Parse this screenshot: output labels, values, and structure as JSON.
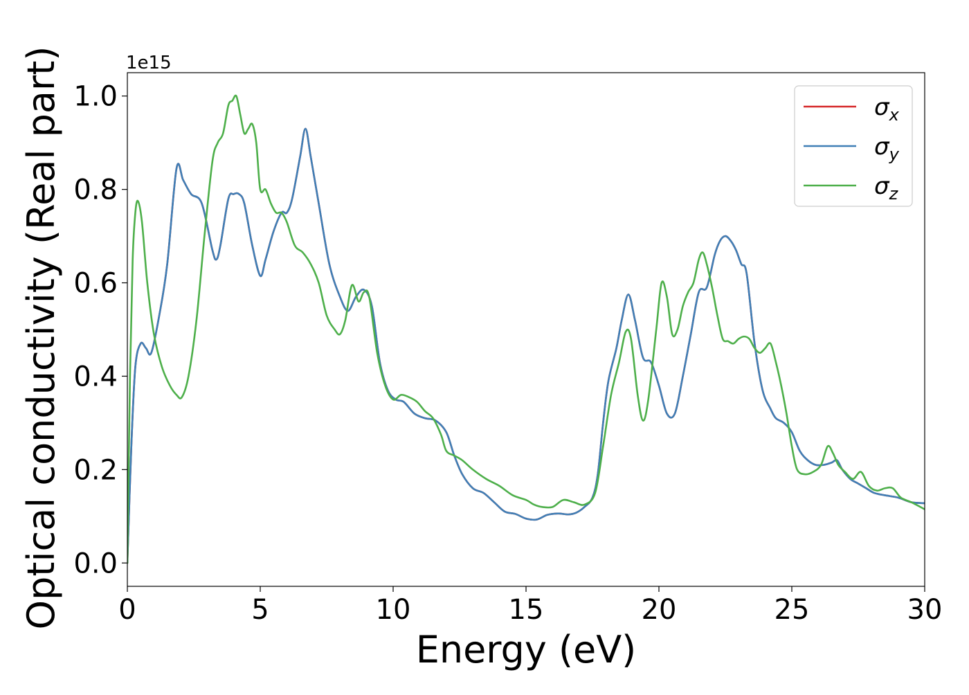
{
  "chart_data": {
    "type": "line",
    "title": "",
    "xlabel": "Energy (eV)",
    "ylabel": "Optical conductivity (Real part)",
    "y_offset_label": "1e15",
    "xlim": [
      0,
      30
    ],
    "ylim": [
      -0.05,
      1.05
    ],
    "x_ticks": [
      0,
      5,
      10,
      15,
      20,
      25,
      30
    ],
    "x_tick_labels": [
      "0",
      "5",
      "10",
      "15",
      "20",
      "25",
      "30"
    ],
    "y_ticks": [
      0.0,
      0.2,
      0.4,
      0.6,
      0.8,
      1.0
    ],
    "y_tick_labels": [
      "0.0",
      "0.2",
      "0.4",
      "0.6",
      "0.8",
      "1.0"
    ],
    "grid": false,
    "legend_position": "top-right",
    "series": [
      {
        "name_base": "σ",
        "name_sub": "x",
        "color": "#d62728",
        "x": [
          0,
          0.15,
          0.3,
          0.5,
          0.7,
          0.9,
          1.2,
          1.5,
          1.85,
          2.1,
          2.4,
          2.8,
          3.2,
          3.35,
          3.5,
          3.8,
          4.0,
          4.2,
          4.4,
          4.7,
          5.0,
          5.2,
          5.5,
          5.8,
          6.0,
          6.2,
          6.5,
          6.7,
          6.9,
          7.2,
          7.6,
          8.0,
          8.3,
          8.6,
          8.9,
          9.2,
          9.5,
          9.8,
          10.1,
          10.4,
          10.8,
          11.2,
          11.6,
          12.0,
          12.3,
          12.6,
          13.0,
          13.4,
          13.8,
          14.2,
          14.6,
          15.0,
          15.4,
          15.8,
          16.2,
          16.6,
          16.9,
          17.2,
          17.5,
          17.7,
          17.9,
          18.1,
          18.4,
          18.6,
          18.85,
          19.1,
          19.4,
          19.7,
          20.0,
          20.3,
          20.6,
          20.9,
          21.2,
          21.5,
          21.8,
          22.1,
          22.3,
          22.5,
          22.7,
          22.9,
          23.1,
          23.3,
          23.6,
          23.9,
          24.2,
          24.4,
          24.7,
          25.0,
          25.3,
          25.6,
          25.9,
          26.2,
          26.5,
          26.7,
          26.9,
          27.2,
          27.5,
          27.8,
          28.1,
          28.5,
          29.0,
          29.5,
          30.0
        ],
        "y": [
          0.0,
          0.25,
          0.42,
          0.47,
          0.46,
          0.45,
          0.53,
          0.64,
          0.845,
          0.82,
          0.79,
          0.77,
          0.67,
          0.65,
          0.68,
          0.78,
          0.79,
          0.79,
          0.77,
          0.68,
          0.615,
          0.65,
          0.71,
          0.75,
          0.75,
          0.78,
          0.87,
          0.93,
          0.87,
          0.77,
          0.64,
          0.57,
          0.54,
          0.57,
          0.585,
          0.55,
          0.43,
          0.37,
          0.35,
          0.345,
          0.32,
          0.31,
          0.305,
          0.28,
          0.23,
          0.19,
          0.16,
          0.15,
          0.13,
          0.11,
          0.105,
          0.095,
          0.093,
          0.103,
          0.106,
          0.104,
          0.108,
          0.12,
          0.14,
          0.19,
          0.3,
          0.39,
          0.46,
          0.52,
          0.575,
          0.52,
          0.44,
          0.43,
          0.38,
          0.32,
          0.32,
          0.4,
          0.49,
          0.58,
          0.59,
          0.66,
          0.69,
          0.7,
          0.69,
          0.67,
          0.64,
          0.62,
          0.47,
          0.37,
          0.33,
          0.31,
          0.3,
          0.28,
          0.24,
          0.22,
          0.21,
          0.21,
          0.215,
          0.22,
          0.2,
          0.18,
          0.17,
          0.16,
          0.15,
          0.145,
          0.14,
          0.13,
          0.128
        ]
      },
      {
        "name_base": "σ",
        "name_sub": "y",
        "color": "#3f7fb6",
        "x": [
          0,
          0.15,
          0.3,
          0.5,
          0.7,
          0.9,
          1.2,
          1.5,
          1.85,
          2.1,
          2.4,
          2.8,
          3.2,
          3.35,
          3.5,
          3.8,
          4.0,
          4.2,
          4.4,
          4.7,
          5.0,
          5.2,
          5.5,
          5.8,
          6.0,
          6.2,
          6.5,
          6.7,
          6.9,
          7.2,
          7.6,
          8.0,
          8.3,
          8.6,
          8.9,
          9.2,
          9.5,
          9.8,
          10.1,
          10.4,
          10.8,
          11.2,
          11.6,
          12.0,
          12.3,
          12.6,
          13.0,
          13.4,
          13.8,
          14.2,
          14.6,
          15.0,
          15.4,
          15.8,
          16.2,
          16.6,
          16.9,
          17.2,
          17.5,
          17.7,
          17.9,
          18.1,
          18.4,
          18.6,
          18.85,
          19.1,
          19.4,
          19.7,
          20.0,
          20.3,
          20.6,
          20.9,
          21.2,
          21.5,
          21.8,
          22.1,
          22.3,
          22.5,
          22.7,
          22.9,
          23.1,
          23.3,
          23.6,
          23.9,
          24.2,
          24.4,
          24.7,
          25.0,
          25.3,
          25.6,
          25.9,
          26.2,
          26.5,
          26.7,
          26.9,
          27.2,
          27.5,
          27.8,
          28.1,
          28.5,
          29.0,
          29.5,
          30.0
        ],
        "y": [
          0.0,
          0.25,
          0.42,
          0.47,
          0.46,
          0.45,
          0.53,
          0.64,
          0.845,
          0.82,
          0.79,
          0.77,
          0.67,
          0.65,
          0.68,
          0.78,
          0.79,
          0.79,
          0.77,
          0.68,
          0.615,
          0.65,
          0.71,
          0.75,
          0.75,
          0.78,
          0.87,
          0.93,
          0.87,
          0.77,
          0.64,
          0.57,
          0.54,
          0.57,
          0.585,
          0.55,
          0.43,
          0.37,
          0.35,
          0.345,
          0.32,
          0.31,
          0.305,
          0.28,
          0.23,
          0.19,
          0.16,
          0.15,
          0.13,
          0.11,
          0.105,
          0.095,
          0.093,
          0.103,
          0.106,
          0.104,
          0.108,
          0.12,
          0.14,
          0.19,
          0.3,
          0.39,
          0.46,
          0.52,
          0.575,
          0.52,
          0.44,
          0.43,
          0.38,
          0.32,
          0.32,
          0.4,
          0.49,
          0.58,
          0.59,
          0.66,
          0.69,
          0.7,
          0.69,
          0.67,
          0.64,
          0.62,
          0.47,
          0.37,
          0.33,
          0.31,
          0.3,
          0.28,
          0.24,
          0.22,
          0.21,
          0.21,
          0.215,
          0.22,
          0.2,
          0.18,
          0.17,
          0.16,
          0.15,
          0.145,
          0.14,
          0.13,
          0.128
        ]
      },
      {
        "name_base": "σ",
        "name_sub": "z",
        "color": "#4daf4a",
        "x": [
          0,
          0.1,
          0.2,
          0.3,
          0.4,
          0.55,
          0.75,
          1.0,
          1.3,
          1.6,
          1.85,
          2.05,
          2.3,
          2.6,
          2.9,
          3.2,
          3.4,
          3.6,
          3.8,
          3.95,
          4.1,
          4.25,
          4.4,
          4.55,
          4.7,
          4.85,
          5.0,
          5.2,
          5.4,
          5.6,
          5.8,
          6.0,
          6.3,
          6.6,
          6.9,
          7.2,
          7.5,
          7.8,
          8.0,
          8.2,
          8.45,
          8.7,
          8.9,
          9.1,
          9.4,
          9.7,
          10.0,
          10.3,
          10.6,
          10.9,
          11.2,
          11.5,
          11.8,
          12.0,
          12.3,
          12.6,
          13.0,
          13.5,
          14.0,
          14.5,
          15.0,
          15.3,
          15.6,
          16.0,
          16.4,
          16.8,
          17.2,
          17.6,
          17.9,
          18.2,
          18.5,
          18.75,
          18.95,
          19.2,
          19.4,
          19.6,
          19.9,
          20.1,
          20.3,
          20.5,
          20.7,
          20.9,
          21.1,
          21.3,
          21.5,
          21.65,
          21.8,
          22.0,
          22.2,
          22.4,
          22.6,
          22.8,
          23.0,
          23.2,
          23.4,
          23.6,
          23.8,
          24.0,
          24.2,
          24.4,
          24.6,
          24.8,
          25.0,
          25.2,
          25.5,
          25.8,
          26.1,
          26.35,
          26.55,
          26.75,
          27.0,
          27.3,
          27.6,
          27.9,
          28.2,
          28.5,
          28.8,
          29.1,
          29.5,
          30.0
        ],
        "y": [
          0.0,
          0.4,
          0.65,
          0.75,
          0.775,
          0.73,
          0.6,
          0.49,
          0.42,
          0.38,
          0.36,
          0.355,
          0.4,
          0.52,
          0.7,
          0.86,
          0.9,
          0.92,
          0.98,
          0.99,
          1.0,
          0.96,
          0.92,
          0.93,
          0.94,
          0.9,
          0.8,
          0.8,
          0.77,
          0.75,
          0.75,
          0.73,
          0.68,
          0.665,
          0.64,
          0.6,
          0.53,
          0.5,
          0.49,
          0.52,
          0.595,
          0.56,
          0.58,
          0.57,
          0.45,
          0.38,
          0.35,
          0.36,
          0.355,
          0.345,
          0.325,
          0.31,
          0.275,
          0.24,
          0.23,
          0.22,
          0.2,
          0.18,
          0.165,
          0.145,
          0.135,
          0.125,
          0.12,
          0.12,
          0.135,
          0.13,
          0.125,
          0.15,
          0.25,
          0.36,
          0.43,
          0.495,
          0.48,
          0.36,
          0.305,
          0.35,
          0.5,
          0.6,
          0.57,
          0.49,
          0.5,
          0.55,
          0.58,
          0.6,
          0.65,
          0.665,
          0.64,
          0.59,
          0.53,
          0.48,
          0.475,
          0.47,
          0.48,
          0.485,
          0.48,
          0.46,
          0.45,
          0.46,
          0.47,
          0.43,
          0.38,
          0.32,
          0.25,
          0.2,
          0.19,
          0.195,
          0.21,
          0.25,
          0.235,
          0.21,
          0.195,
          0.18,
          0.195,
          0.165,
          0.155,
          0.16,
          0.16,
          0.14,
          0.13,
          0.115
        ]
      }
    ]
  }
}
